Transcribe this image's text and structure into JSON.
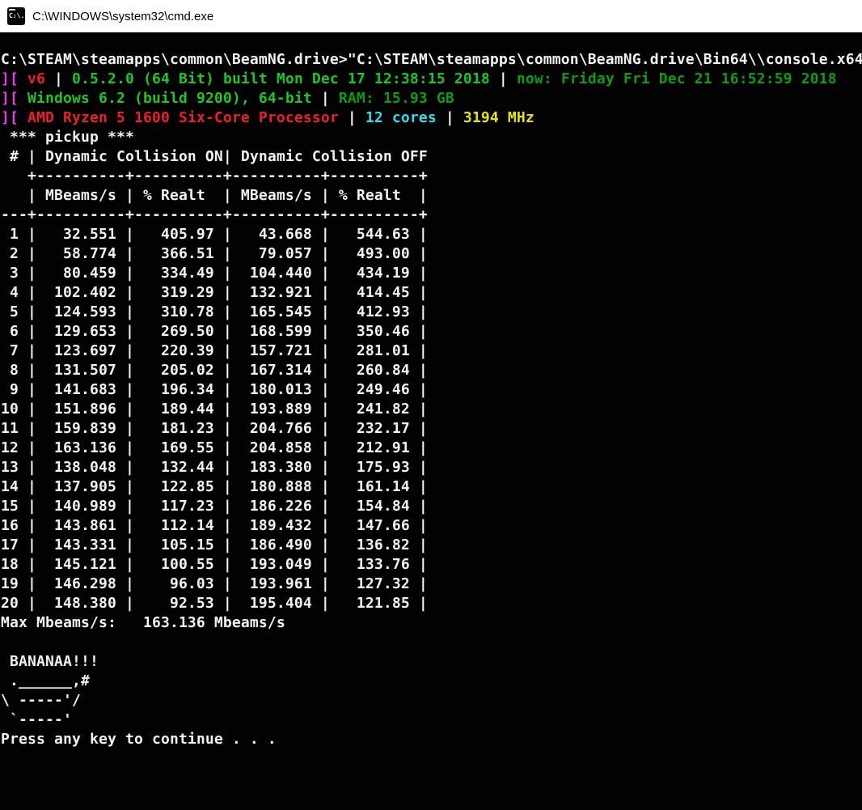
{
  "window": {
    "title": "C:\\WINDOWS\\system32\\cmd.exe",
    "icon_glyph": "C:\\."
  },
  "colors": {
    "titlebar_bg": "#ffffff",
    "titlebar_text": "#000000",
    "console_bg": "#020202",
    "default": "#f2f2f2",
    "magenta": "#ea3aea",
    "red": "#ec2124",
    "bright_green": "#1fc725",
    "dark_green": "#0e9c13",
    "cyan": "#38dce8",
    "yellow": "#e4e417"
  },
  "console": {
    "prompt_line": "C:\\STEAM\\steamapps\\common\\BeamNG.drive>\"C:\\STEAM\\steamapps\\common\\BeamNG.drive\\Bin64\\\\console.x64",
    "sysinfo_lines": [
      {
        "name": "version-line",
        "segments": [
          {
            "text": "][",
            "color": "magenta"
          },
          {
            "text": " ",
            "color": "default"
          },
          {
            "text": "v6",
            "color": "red"
          },
          {
            "text": " | ",
            "color": "default"
          },
          {
            "text": "0.5.2.0 (64 Bit) built Mon Dec 17 12:38:15 2018",
            "color": "bright_green"
          },
          {
            "text": " | ",
            "color": "default"
          },
          {
            "text": "now: Friday Fri Dec 21 16:52:59 2018",
            "color": "dark_green"
          }
        ]
      },
      {
        "name": "os-line",
        "segments": [
          {
            "text": "][",
            "color": "magenta"
          },
          {
            "text": " ",
            "color": "default"
          },
          {
            "text": "Windows 6.2 (build 9200), 64-bit",
            "color": "bright_green"
          },
          {
            "text": " | ",
            "color": "default"
          },
          {
            "text": "RAM: 15.93 GB",
            "color": "dark_green"
          }
        ]
      },
      {
        "name": "cpu-line",
        "segments": [
          {
            "text": "][",
            "color": "magenta"
          },
          {
            "text": " ",
            "color": "default"
          },
          {
            "text": "AMD Ryzen 5 1600 Six-Core Processor",
            "color": "red"
          },
          {
            "text": " | ",
            "color": "default"
          },
          {
            "text": "12 cores",
            "color": "cyan"
          },
          {
            "text": " | ",
            "color": "default"
          },
          {
            "text": "3194 MHz",
            "color": "yellow"
          }
        ]
      }
    ],
    "benchmark": {
      "title": "*** pickup ***",
      "group_headers": {
        "row_col": "#",
        "on": "Dynamic Collision ON",
        "off": "Dynamic Collision OFF"
      },
      "col_headers": [
        "MBeams/s",
        "% Realt",
        "MBeams/s",
        "% Realt"
      ],
      "rows": [
        [
          1,
          "32.551",
          "405.97",
          "43.668",
          "544.63"
        ],
        [
          2,
          "58.774",
          "366.51",
          "79.057",
          "493.00"
        ],
        [
          3,
          "80.459",
          "334.49",
          "104.440",
          "434.19"
        ],
        [
          4,
          "102.402",
          "319.29",
          "132.921",
          "414.45"
        ],
        [
          5,
          "124.593",
          "310.78",
          "165.545",
          "412.93"
        ],
        [
          6,
          "129.653",
          "269.50",
          "168.599",
          "350.46"
        ],
        [
          7,
          "123.697",
          "220.39",
          "157.721",
          "281.01"
        ],
        [
          8,
          "131.507",
          "205.02",
          "167.314",
          "260.84"
        ],
        [
          9,
          "141.683",
          "196.34",
          "180.013",
          "249.46"
        ],
        [
          10,
          "151.896",
          "189.44",
          "193.889",
          "241.82"
        ],
        [
          11,
          "159.839",
          "181.23",
          "204.766",
          "232.17"
        ],
        [
          12,
          "163.136",
          "169.55",
          "204.858",
          "212.91"
        ],
        [
          13,
          "138.048",
          "132.44",
          "183.380",
          "175.93"
        ],
        [
          14,
          "137.905",
          "122.85",
          "180.888",
          "161.14"
        ],
        [
          15,
          "140.989",
          "117.23",
          "186.226",
          "154.84"
        ],
        [
          16,
          "143.861",
          "112.14",
          "189.432",
          "147.66"
        ],
        [
          17,
          "143.331",
          "105.15",
          "186.490",
          "136.82"
        ],
        [
          18,
          "145.121",
          "100.55",
          "193.049",
          "133.76"
        ],
        [
          19,
          "146.298",
          "96.03",
          "193.961",
          "127.32"
        ],
        [
          20,
          "148.380",
          "92.53",
          "195.404",
          "121.85"
        ]
      ]
    },
    "max_line": {
      "label": "Max Mbeams/s:",
      "value": "163.136",
      "unit": "Mbeams/s"
    },
    "banana": {
      "exclaim": "BANANAA!!!",
      "art": [
        " .______,#",
        "\\ -----'/",
        " `-----'"
      ]
    },
    "press_any_key": "Press any key to continue . . ."
  }
}
